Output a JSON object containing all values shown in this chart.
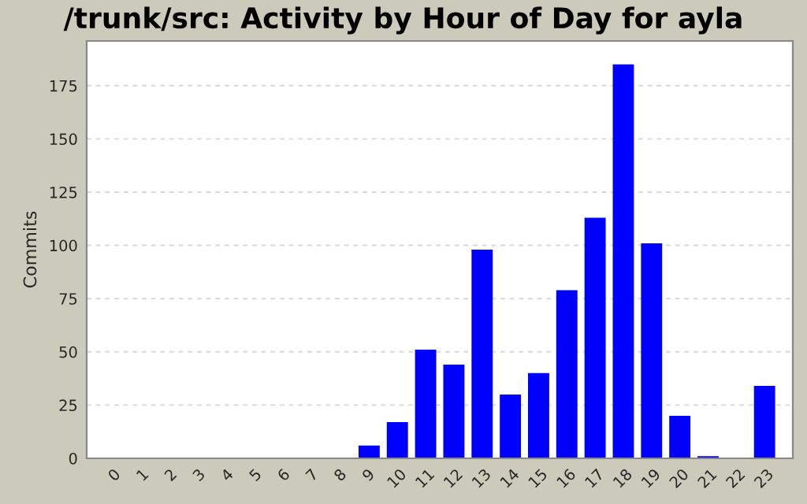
{
  "chart_data": {
    "type": "bar",
    "title": "/trunk/src: Activity by Hour of Day for ayla",
    "ylabel": "Commits",
    "categories": [
      "0",
      "1",
      "2",
      "3",
      "4",
      "5",
      "6",
      "7",
      "8",
      "9",
      "10",
      "11",
      "12",
      "13",
      "14",
      "15",
      "16",
      "17",
      "18",
      "19",
      "20",
      "21",
      "22",
      "23"
    ],
    "values": [
      0,
      0,
      0,
      0,
      0,
      0,
      0,
      0,
      0,
      6,
      17,
      51,
      44,
      98,
      30,
      40,
      79,
      113,
      185,
      101,
      20,
      1,
      0,
      34
    ],
    "color": "#0000ff",
    "ylim": [
      0,
      196
    ],
    "yticks": [
      0,
      25,
      50,
      75,
      100,
      125,
      150,
      175
    ],
    "grid": "y",
    "legend": false
  }
}
